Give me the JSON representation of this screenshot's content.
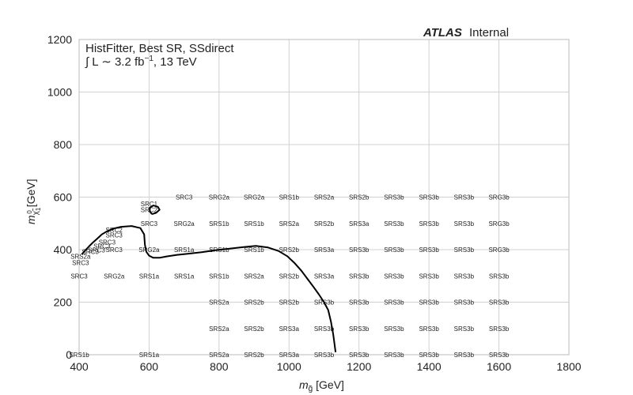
{
  "header": {
    "atlas": "ATLAS",
    "status": "Internal"
  },
  "legend": {
    "line1": "HistFitter, Best SR, SSdirect",
    "line2_prefix": "∫ L ∼ 3.2 fb",
    "line2_sup": "−1",
    "line2_suffix": ", 13 TeV"
  },
  "chart_data": {
    "type": "line",
    "title": "",
    "xlabel": {
      "prefix": "m",
      "sub": "g̃",
      "suffix": " [GeV]"
    },
    "ylabel": {
      "prefix": "m",
      "sub": "χ̃",
      "subsub": "1",
      "sup": "0",
      "suffix": " [GeV]"
    },
    "xlim": [
      400,
      1800
    ],
    "ylim": [
      0,
      1200
    ],
    "xticks": [
      400,
      600,
      800,
      1000,
      1200,
      1400,
      1600,
      1800
    ],
    "yticks": [
      0,
      200,
      400,
      600,
      800,
      1000,
      1200
    ],
    "grid": true,
    "series": [
      {
        "color": "#000000",
        "points": [
          [
            1133,
            10
          ],
          [
            1130,
            40
          ],
          [
            1126,
            80
          ],
          [
            1120,
            125
          ],
          [
            1112,
            170
          ],
          [
            1100,
            200
          ],
          [
            1085,
            230
          ],
          [
            1070,
            258
          ],
          [
            1052,
            290
          ],
          [
            1035,
            320
          ],
          [
            1015,
            350
          ],
          [
            995,
            375
          ],
          [
            970,
            395
          ],
          [
            940,
            408
          ],
          [
            905,
            414
          ],
          [
            870,
            410
          ],
          [
            830,
            404
          ],
          [
            790,
            398
          ],
          [
            750,
            390
          ],
          [
            710,
            384
          ],
          [
            680,
            380
          ],
          [
            650,
            374
          ],
          [
            630,
            369
          ],
          [
            612,
            369
          ],
          [
            600,
            377
          ],
          [
            592,
            392
          ],
          [
            588,
            420
          ],
          [
            586,
            458
          ],
          [
            575,
            482
          ],
          [
            550,
            490
          ],
          [
            520,
            487
          ],
          [
            498,
            480
          ],
          [
            480,
            470
          ],
          [
            465,
            458
          ],
          [
            452,
            442
          ],
          [
            440,
            428
          ],
          [
            428,
            412
          ],
          [
            418,
            398
          ],
          [
            408,
            383
          ]
        ]
      },
      {
        "color": "#000000",
        "points": [
          [
            608,
            535
          ],
          [
            602,
            546
          ],
          [
            602,
            560
          ],
          [
            612,
            568
          ],
          [
            625,
            563
          ],
          [
            630,
            552
          ],
          [
            620,
            540
          ],
          [
            608,
            535
          ]
        ]
      }
    ],
    "annotations": [
      {
        "x": 700,
        "y": 600,
        "text": "SRC3"
      },
      {
        "x": 800,
        "y": 600,
        "text": "SRG2a"
      },
      {
        "x": 900,
        "y": 600,
        "text": "SRG2a"
      },
      {
        "x": 1000,
        "y": 600,
        "text": "SRS1b"
      },
      {
        "x": 1100,
        "y": 600,
        "text": "SRS2a"
      },
      {
        "x": 1200,
        "y": 600,
        "text": "SRS2b"
      },
      {
        "x": 1300,
        "y": 600,
        "text": "SRS3b"
      },
      {
        "x": 1400,
        "y": 600,
        "text": "SRS3b"
      },
      {
        "x": 1500,
        "y": 600,
        "text": "SRS3b"
      },
      {
        "x": 1600,
        "y": 600,
        "text": "SRG3b"
      },
      {
        "x": 600,
        "y": 575,
        "text": "SRC1"
      },
      {
        "x": 600,
        "y": 552,
        "text": "SRC2"
      },
      {
        "x": 600,
        "y": 500,
        "text": "SRC3"
      },
      {
        "x": 700,
        "y": 500,
        "text": "SRG2a"
      },
      {
        "x": 800,
        "y": 500,
        "text": "SRS1b"
      },
      {
        "x": 900,
        "y": 500,
        "text": "SRS1b"
      },
      {
        "x": 1000,
        "y": 500,
        "text": "SRS2a"
      },
      {
        "x": 1100,
        "y": 500,
        "text": "SRS2b"
      },
      {
        "x": 1200,
        "y": 500,
        "text": "SRS3a"
      },
      {
        "x": 1300,
        "y": 500,
        "text": "SRS3b"
      },
      {
        "x": 1400,
        "y": 500,
        "text": "SRS3b"
      },
      {
        "x": 1500,
        "y": 500,
        "text": "SRS3b"
      },
      {
        "x": 1600,
        "y": 500,
        "text": "SRG3b"
      },
      {
        "x": 500,
        "y": 475,
        "text": "SRC2"
      },
      {
        "x": 500,
        "y": 455,
        "text": "SRC3"
      },
      {
        "x": 480,
        "y": 428,
        "text": "SRC3"
      },
      {
        "x": 465,
        "y": 414,
        "text": "SRC3"
      },
      {
        "x": 450,
        "y": 398,
        "text": "SRC3"
      },
      {
        "x": 432,
        "y": 393,
        "text": "SRC3"
      },
      {
        "x": 500,
        "y": 400,
        "text": "SRC3"
      },
      {
        "x": 600,
        "y": 400,
        "text": "SRG2a"
      },
      {
        "x": 700,
        "y": 400,
        "text": "SRS1a"
      },
      {
        "x": 800,
        "y": 400,
        "text": "SRS1b"
      },
      {
        "x": 900,
        "y": 400,
        "text": "SRS1b"
      },
      {
        "x": 1000,
        "y": 400,
        "text": "SRS2b"
      },
      {
        "x": 1100,
        "y": 400,
        "text": "SRS3a"
      },
      {
        "x": 1200,
        "y": 400,
        "text": "SRS3b"
      },
      {
        "x": 1300,
        "y": 400,
        "text": "SRS3b"
      },
      {
        "x": 1400,
        "y": 400,
        "text": "SRS3b"
      },
      {
        "x": 1500,
        "y": 400,
        "text": "SRS3b"
      },
      {
        "x": 1600,
        "y": 400,
        "text": "SRG3b"
      },
      {
        "x": 404,
        "y": 375,
        "text": "SRS2a"
      },
      {
        "x": 404,
        "y": 350,
        "text": "SRC3"
      },
      {
        "x": 400,
        "y": 300,
        "text": "SRC3"
      },
      {
        "x": 500,
        "y": 300,
        "text": "SRG2a"
      },
      {
        "x": 600,
        "y": 300,
        "text": "SRS1a"
      },
      {
        "x": 700,
        "y": 300,
        "text": "SRS1a"
      },
      {
        "x": 800,
        "y": 300,
        "text": "SRS1b"
      },
      {
        "x": 900,
        "y": 300,
        "text": "SRS2a"
      },
      {
        "x": 1000,
        "y": 300,
        "text": "SRS2b"
      },
      {
        "x": 1100,
        "y": 300,
        "text": "SRS3a"
      },
      {
        "x": 1200,
        "y": 300,
        "text": "SRS3b"
      },
      {
        "x": 1300,
        "y": 300,
        "text": "SRS3b"
      },
      {
        "x": 1400,
        "y": 300,
        "text": "SRS3b"
      },
      {
        "x": 1500,
        "y": 300,
        "text": "SRS3b"
      },
      {
        "x": 1600,
        "y": 300,
        "text": "SRS3b"
      },
      {
        "x": 800,
        "y": 200,
        "text": "SRS2a"
      },
      {
        "x": 900,
        "y": 200,
        "text": "SRS2b"
      },
      {
        "x": 1000,
        "y": 200,
        "text": "SRS2b"
      },
      {
        "x": 1100,
        "y": 200,
        "text": "SRS3b"
      },
      {
        "x": 1200,
        "y": 200,
        "text": "SRS3b"
      },
      {
        "x": 1300,
        "y": 200,
        "text": "SRS3b"
      },
      {
        "x": 1400,
        "y": 200,
        "text": "SRS3b"
      },
      {
        "x": 1500,
        "y": 200,
        "text": "SRS3b"
      },
      {
        "x": 1600,
        "y": 200,
        "text": "SRS3b"
      },
      {
        "x": 800,
        "y": 100,
        "text": "SRS2a"
      },
      {
        "x": 900,
        "y": 100,
        "text": "SRS2b"
      },
      {
        "x": 1000,
        "y": 100,
        "text": "SRS3a"
      },
      {
        "x": 1100,
        "y": 100,
        "text": "SRS3b"
      },
      {
        "x": 1200,
        "y": 100,
        "text": "SRS3b"
      },
      {
        "x": 1300,
        "y": 100,
        "text": "SRS3b"
      },
      {
        "x": 1400,
        "y": 100,
        "text": "SRS3b"
      },
      {
        "x": 1500,
        "y": 100,
        "text": "SRS3b"
      },
      {
        "x": 1600,
        "y": 100,
        "text": "SRS3b"
      },
      {
        "x": 400,
        "y": 0,
        "text": "SRS1b"
      },
      {
        "x": 600,
        "y": 0,
        "text": "SRS1a"
      },
      {
        "x": 800,
        "y": 0,
        "text": "SRS2a"
      },
      {
        "x": 900,
        "y": 0,
        "text": "SRS2b"
      },
      {
        "x": 1000,
        "y": 0,
        "text": "SRS3a"
      },
      {
        "x": 1100,
        "y": 0,
        "text": "SRS3b"
      },
      {
        "x": 1200,
        "y": 0,
        "text": "SRS3b"
      },
      {
        "x": 1300,
        "y": 0,
        "text": "SRS3b"
      },
      {
        "x": 1400,
        "y": 0,
        "text": "SRS3b"
      },
      {
        "x": 1500,
        "y": 0,
        "text": "SRS3b"
      },
      {
        "x": 1600,
        "y": 0,
        "text": "SRS3b"
      }
    ]
  }
}
